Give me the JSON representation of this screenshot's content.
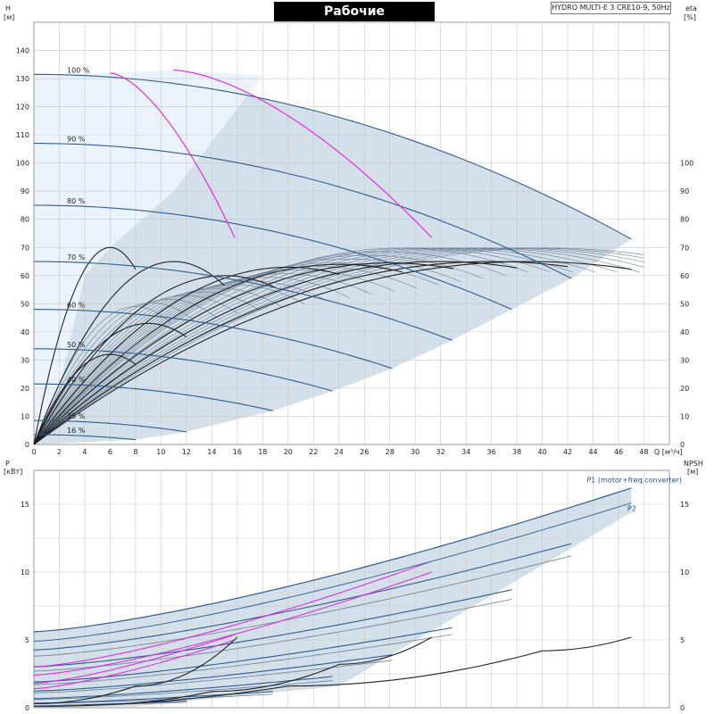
{
  "header": {
    "title": "Рабочие характеристики",
    "model": "HYDRO MULTI-E 3 CRE10-9, 50Hz"
  },
  "colors": {
    "range_fill": "#d3dfe9",
    "pressure_zone": "#eaf3fb",
    "curve": "#2e5d92",
    "thin_curve": "#6d7f94",
    "efficiency": "#222222",
    "magenta": "#e020e0",
    "grid": "#c8c8c8"
  },
  "chart_data": [
    {
      "type": "line",
      "name": "head",
      "xlabel": "Q [м³/ч]",
      "ylabel_left": [
        "H",
        "[м]"
      ],
      "ylabel_right": [
        "eta",
        "[%]"
      ],
      "x_ticks": [
        0,
        2,
        4,
        6,
        8,
        10,
        12,
        14,
        16,
        18,
        20,
        22,
        24,
        26,
        28,
        30,
        32,
        34,
        36,
        38,
        40,
        42,
        44,
        46,
        48
      ],
      "y_ticks": [
        0,
        10,
        20,
        30,
        40,
        50,
        60,
        70,
        80,
        90,
        100,
        110,
        120,
        130,
        140
      ],
      "y_right_ticks": [
        0,
        10,
        20,
        30,
        40,
        50,
        60,
        70,
        80,
        90,
        100
      ],
      "xlim": [
        0,
        50
      ],
      "ylim": [
        0,
        150
      ],
      "grid": true,
      "speed_curves": [
        {
          "label": "100 %",
          "h0": 131.5,
          "qmax": 47,
          "hend": 73
        },
        {
          "label": "90 %",
          "h0": 107,
          "qmax": 42.3,
          "hend": 59
        },
        {
          "label": "80 %",
          "h0": 85,
          "qmax": 37.6,
          "hend": 48
        },
        {
          "label": "70 %",
          "h0": 65,
          "qmax": 32.9,
          "hend": 37
        },
        {
          "label": "60 %",
          "h0": 48,
          "qmax": 28.2,
          "hend": 27
        },
        {
          "label": "50 %",
          "h0": 34,
          "qmax": 23.5,
          "hend": 19
        },
        {
          "label": "40 %",
          "h0": 21.5,
          "qmax": 18.8,
          "hend": 12
        },
        {
          "label": "25 %",
          "h0": 8.5,
          "qmax": 12,
          "hend": 4.5
        },
        {
          "label": "16 %",
          "h0": 3.5,
          "qmax": 8,
          "hend": 1.7
        }
      ],
      "efficiency_curves": [
        {
          "qpeak": 6,
          "epeak": 32,
          "qend": 8
        },
        {
          "qpeak": 9,
          "epeak": 43,
          "qend": 12
        },
        {
          "qpeak": 6,
          "epeak": 70,
          "qend": 8
        },
        {
          "qpeak": 11,
          "epeak": 65,
          "qend": 15
        },
        {
          "qpeak": 15,
          "epeak": 60,
          "qend": 19
        },
        {
          "qpeak": 20,
          "epeak": 63,
          "qend": 24
        },
        {
          "qpeak": 24,
          "epeak": 64,
          "qend": 29
        },
        {
          "qpeak": 28,
          "epeak": 64.5,
          "qend": 33
        },
        {
          "qpeak": 32,
          "epeak": 65,
          "qend": 38
        },
        {
          "qpeak": 36,
          "epeak": 65,
          "qend": 42
        },
        {
          "qpeak": 39,
          "epeak": 65,
          "qend": 47
        }
      ],
      "efficiency_end_label_values": [
        29,
        38,
        61,
        55,
        50,
        55,
        56,
        57,
        58,
        58,
        58
      ],
      "magenta_curves": [
        {
          "from": [
            6,
            132
          ],
          "to": [
            15.8,
            73.5
          ]
        },
        {
          "from": [
            11,
            133
          ],
          "to": [
            31.3,
            73.5
          ]
        }
      ]
    },
    {
      "type": "line",
      "name": "power",
      "xlabel": "",
      "ylabel_left": [
        "P",
        "[кВт]"
      ],
      "ylabel_right": [
        "NPSH",
        "[м]"
      ],
      "y_ticks": [
        0,
        5,
        10,
        15
      ],
      "y_right_ticks": [
        0,
        5,
        10,
        15
      ],
      "xlim": [
        0,
        50
      ],
      "ylim": [
        0,
        17.5
      ],
      "grid": true,
      "series": [
        {
          "name": "P1 (motor+freq.converter)",
          "p0": 5.6,
          "qend": 47,
          "pend": 16.2
        },
        {
          "name": "P2",
          "p0": 4.9,
          "qend": 47,
          "pend": 15.1
        }
      ],
      "power_pairs": [
        {
          "p0": 3.8,
          "qend": 42.3,
          "p1end": 12.1,
          "p2end": 11.2
        },
        {
          "p0": 2.7,
          "qend": 37.6,
          "p1end": 8.7,
          "p2end": 8.0
        },
        {
          "p0": 1.7,
          "qend": 32.9,
          "p1end": 5.9,
          "p2end": 5.4
        },
        {
          "p0": 1.1,
          "qend": 28.2,
          "p1end": 3.9,
          "p2end": 3.5
        },
        {
          "p0": 0.6,
          "qend": 23.5,
          "p1end": 2.3,
          "p2end": 2.0
        },
        {
          "p0": 0.3,
          "qend": 18.8,
          "p1end": 1.2,
          "p2end": 1.0
        },
        {
          "p0": 0.12,
          "qend": 12,
          "p1end": 0.5,
          "p2end": 0.4
        }
      ],
      "npsh_curves": [
        {
          "q": [
            0,
            8,
            16
          ],
          "v": [
            0.3,
            1.6,
            5.2
          ]
        },
        {
          "q": [
            4,
            14,
            24,
            31.3
          ],
          "v": [
            0.2,
            1.2,
            3.2,
            5.2
          ]
        },
        {
          "q": [
            0,
            20,
            40,
            47
          ],
          "v": [
            0.1,
            1.6,
            4.2,
            5.2
          ]
        }
      ],
      "magenta_curves": [
        {
          "p0": 3.0,
          "qend": 31.3,
          "pend": 10.8
        },
        {
          "p0": 2.4,
          "qend": 31.3,
          "pend": 10.0
        },
        {
          "p0": 1.8,
          "qend": 15.8,
          "pend": 5.4
        },
        {
          "p0": 1.4,
          "qend": 15.8,
          "pend": 5.0
        }
      ]
    }
  ]
}
